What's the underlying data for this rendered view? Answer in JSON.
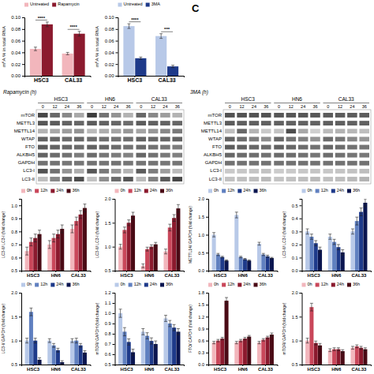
{
  "chart_data": [
    {
      "type": "bar",
      "categories": [
        "HSC3",
        "CAL33"
      ],
      "ylabel": "m⁶A % in total RNA",
      "ylim": [
        0,
        0.1
      ],
      "yticks": [
        {
          "value": 0,
          "label": "0.00"
        },
        0.02,
        0.04,
        0.06,
        0.08,
        {
          "value": 0.1,
          "label": "0.10"
        }
      ],
      "legend": "top",
      "annotations": [
        "****",
        "****"
      ],
      "series": [
        {
          "name": "Untreated",
          "color": "#f2b6bc",
          "values": [
            0.046,
            0.038
          ],
          "errors": [
            0.003,
            0.002
          ]
        },
        {
          "name": "Rapamycin",
          "color": "#8b1a2e",
          "values": [
            0.088,
            0.072
          ],
          "errors": [
            0.004,
            0.004
          ]
        }
      ]
    },
    {
      "type": "bar",
      "categories": [
        "HSC3",
        "CAL33"
      ],
      "ylabel": "m⁶A % in total RNA",
      "ylim": [
        0,
        0.1
      ],
      "yticks": [
        {
          "value": 0,
          "label": "0.00"
        },
        0.02,
        0.04,
        0.06,
        0.08,
        {
          "value": 0.1,
          "label": "0.10"
        }
      ],
      "legend": "top",
      "annotations": [
        "****",
        "***"
      ],
      "series": [
        {
          "name": "Untreated",
          "color": "#b8c9e8",
          "values": [
            0.085,
            0.068
          ],
          "errors": [
            0.004,
            0.004
          ]
        },
        {
          "name": "3MA",
          "color": "#1e3a8a",
          "values": [
            0.03,
            0.016
          ],
          "errors": [
            0.002,
            0.002
          ]
        }
      ]
    },
    {
      "type": "text",
      "annotations": [
        "C"
      ]
    },
    {
      "type": "heatmap",
      "title": "Rapamycin (h)",
      "groups": [
        "HSC3",
        "HN6",
        "CAL33"
      ],
      "timepoints": [
        "0",
        "12",
        "24",
        "36"
      ],
      "categories": [
        "mTOR",
        "METTL3",
        "METTL14",
        "WTAP",
        "FTO",
        "ALKBH5",
        "GAPDH",
        "LC3-I",
        "LC3-II"
      ],
      "cells": [
        [
          0.85,
          0.7,
          0.55,
          0.4,
          0.9,
          0.65,
          0.5,
          0.35,
          0.7,
          0.55,
          0.45,
          0.35
        ],
        [
          0.78,
          0.75,
          0.72,
          0.7,
          0.75,
          0.72,
          0.7,
          0.68,
          0.75,
          0.73,
          0.72,
          0.7
        ],
        [
          0.35,
          0.4,
          0.45,
          0.5,
          0.32,
          0.38,
          0.42,
          0.48,
          0.42,
          0.48,
          0.55,
          0.62
        ],
        [
          0.72,
          0.7,
          0.68,
          0.7,
          0.68,
          0.66,
          0.65,
          0.67,
          0.72,
          0.7,
          0.7,
          0.72
        ],
        [
          0.75,
          0.72,
          0.7,
          0.68,
          0.73,
          0.7,
          0.68,
          0.65,
          0.68,
          0.65,
          0.63,
          0.6
        ],
        [
          0.72,
          0.68,
          0.65,
          0.6,
          0.68,
          0.63,
          0.6,
          0.57,
          0.7,
          0.65,
          0.62,
          0.58
        ],
        [
          0.65,
          0.65,
          0.63,
          0.63,
          0.65,
          0.64,
          0.64,
          0.63,
          0.64,
          0.64,
          0.63,
          0.63
        ],
        [
          0.8,
          0.65,
          0.5,
          0.38,
          0.78,
          0.62,
          0.48,
          0.35,
          0.75,
          0.6,
          0.45,
          0.32
        ],
        [
          0.3,
          0.55,
          0.72,
          0.82,
          0.28,
          0.52,
          0.68,
          0.78,
          0.32,
          0.58,
          0.75,
          0.85
        ]
      ]
    },
    {
      "type": "heatmap",
      "title": "3MA (h)",
      "groups": [
        "HSC3",
        "HN6",
        "CAL33"
      ],
      "timepoints": [
        "0",
        "12",
        "24",
        "36"
      ],
      "categories": [
        "mTOR",
        "METTL3",
        "METTL14",
        "WTAP",
        "FTO",
        "ALKBH5",
        "GAPDH",
        "LC3-I",
        "LC3-II"
      ],
      "cells": [
        [
          0.8,
          0.8,
          0.8,
          0.8,
          0.78,
          0.78,
          0.78,
          0.78,
          0.75,
          0.75,
          0.75,
          0.75
        ],
        [
          0.75,
          0.74,
          0.74,
          0.73,
          0.73,
          0.73,
          0.72,
          0.72,
          0.74,
          0.74,
          0.73,
          0.73
        ],
        [
          0.3,
          0.7,
          0.35,
          0.25,
          0.28,
          0.82,
          0.4,
          0.22,
          0.32,
          0.35,
          0.33,
          0.3
        ],
        [
          0.72,
          0.68,
          0.6,
          0.52,
          0.7,
          0.65,
          0.58,
          0.5,
          0.68,
          0.63,
          0.55,
          0.48
        ],
        [
          0.75,
          0.73,
          0.7,
          0.68,
          0.73,
          0.7,
          0.68,
          0.65,
          0.7,
          0.68,
          0.65,
          0.63
        ],
        [
          0.7,
          0.68,
          0.67,
          0.65,
          0.68,
          0.67,
          0.65,
          0.63,
          0.67,
          0.65,
          0.63,
          0.62
        ],
        [
          0.65,
          0.65,
          0.65,
          0.65,
          0.65,
          0.65,
          0.65,
          0.65,
          0.65,
          0.65,
          0.65,
          0.65
        ],
        [
          0.25,
          0.26,
          0.27,
          0.28,
          0.24,
          0.25,
          0.26,
          0.27,
          0.26,
          0.27,
          0.28,
          0.3
        ],
        [
          0.28,
          0.29,
          0.3,
          0.32,
          0.27,
          0.28,
          0.3,
          0.32,
          0.29,
          0.3,
          0.32,
          0.35
        ]
      ]
    },
    {
      "type": "bar",
      "categories": [
        "HSC3",
        "HN6",
        "CAL33"
      ],
      "ylabel": "LC3-II/ LC3-I (fold change)",
      "ylim": [
        0.5,
        1.05
      ],
      "yticks": [
        0.5,
        0.6,
        0.7,
        0.8,
        0.9,
        {
          "value": 1,
          "label": "1.0"
        }
      ],
      "legend": "top",
      "series": [
        {
          "name": "0h",
          "color": "#f2b6bc",
          "values": [
            0.65,
            0.7,
            0.82
          ],
          "errors": [
            0.03,
            0.03,
            0.03
          ]
        },
        {
          "name": "12h",
          "color": "#c9475a",
          "values": [
            0.72,
            0.75,
            0.88
          ],
          "errors": [
            0.03,
            0.03,
            0.03
          ]
        },
        {
          "name": "24h",
          "color": "#8b1a2e",
          "values": [
            0.75,
            0.78,
            0.93
          ],
          "errors": [
            0.03,
            0.03,
            0.03
          ]
        },
        {
          "name": "36h",
          "color": "#4a0a15",
          "values": [
            0.78,
            0.82,
            0.98
          ],
          "errors": [
            0.03,
            0.03,
            0.03
          ]
        }
      ]
    },
    {
      "type": "bar",
      "categories": [
        "HSC3",
        "HN6",
        "CAL33"
      ],
      "ylabel": "LC3-II/ LC3-I (fold change)",
      "ylim": [
        0.5,
        2.0
      ],
      "yticks": [
        0.5,
        {
          "value": 1,
          "label": "1.0"
        },
        1.5,
        {
          "value": 2,
          "label": "2.0"
        }
      ],
      "legend": "top",
      "series": [
        {
          "name": "0h",
          "color": "#f2b6bc",
          "values": [
            1.0,
            0.6,
            0.9
          ],
          "errors": [
            0.05,
            0.04,
            0.05
          ]
        },
        {
          "name": "12h",
          "color": "#c9475a",
          "values": [
            1.35,
            0.95,
            1.4
          ],
          "errors": [
            0.06,
            0.04,
            0.07
          ]
        },
        {
          "name": "24h",
          "color": "#8b1a2e",
          "values": [
            1.5,
            1.0,
            1.6
          ],
          "errors": [
            0.06,
            0.04,
            0.07
          ]
        },
        {
          "name": "36h",
          "color": "#4a0a15",
          "values": [
            1.65,
            1.05,
            1.8
          ],
          "errors": [
            0.07,
            0.04,
            0.08
          ]
        }
      ]
    },
    {
      "type": "bar",
      "categories": [
        "HSC3",
        "HN6",
        "CAL33"
      ],
      "ylabel": "METTL14/ GAPDH (fold change)",
      "ylim": [
        0.0,
        2.0
      ],
      "yticks": [
        {
          "value": 0,
          "label": "0.0"
        },
        0.5,
        {
          "value": 1,
          "label": "1.0"
        },
        1.5,
        {
          "value": 2,
          "label": "2.0"
        }
      ],
      "legend": "top",
      "series": [
        {
          "name": "0h",
          "color": "#b8c9e8",
          "values": [
            1.0,
            1.55,
            0.75
          ],
          "errors": [
            0.06,
            0.08,
            0.04
          ]
        },
        {
          "name": "12h",
          "color": "#6080c0",
          "values": [
            0.45,
            0.38,
            0.45
          ],
          "errors": [
            0.03,
            0.02,
            0.03
          ]
        },
        {
          "name": "24h",
          "color": "#1e3a8a",
          "values": [
            0.38,
            0.32,
            0.4
          ],
          "errors": [
            0.02,
            0.02,
            0.03
          ]
        },
        {
          "name": "36h",
          "color": "#0a1550",
          "values": [
            0.28,
            0.28,
            0.35
          ],
          "errors": [
            0.02,
            0.02,
            0.02
          ]
        }
      ]
    },
    {
      "type": "bar",
      "categories": [
        "HSC3",
        "HN6",
        "CAL33"
      ],
      "ylabel": "LC3-II/ LC3-I (fold change)",
      "ylim": [
        0.0,
        0.55
      ],
      "yticks": [
        {
          "value": 0,
          "label": "0.0"
        },
        0.1,
        0.2,
        0.3,
        0.4,
        0.5
      ],
      "legend": "top",
      "series": [
        {
          "name": "0h",
          "color": "#b8c9e8",
          "values": [
            0.3,
            0.26,
            0.3
          ],
          "errors": [
            0.02,
            0.02,
            0.02
          ]
        },
        {
          "name": "12h",
          "color": "#6080c0",
          "values": [
            0.26,
            0.22,
            0.38
          ],
          "errors": [
            0.02,
            0.02,
            0.03
          ]
        },
        {
          "name": "24h",
          "color": "#1e3a8a",
          "values": [
            0.21,
            0.18,
            0.45
          ],
          "errors": [
            0.02,
            0.02,
            0.03
          ]
        },
        {
          "name": "36h",
          "color": "#0a1550",
          "values": [
            0.16,
            0.14,
            0.52
          ],
          "errors": [
            0.02,
            0.02,
            0.03
          ]
        }
      ]
    },
    {
      "type": "bar",
      "categories": [
        "HSC3",
        "HN6",
        "CAL33"
      ],
      "ylabel": "LC3-I/ GAPDH (fold change)",
      "ylim": [
        0.5,
        2.0
      ],
      "yticks": [
        0.5,
        {
          "value": 1,
          "label": "1.0"
        },
        1.5,
        {
          "value": 2,
          "label": "2.0"
        }
      ],
      "legend": "top",
      "series": [
        {
          "name": "0h",
          "color": "#b8c9e8",
          "values": [
            1.0,
            1.0,
            1.0
          ],
          "errors": [
            0.05,
            0.04,
            0.04
          ]
        },
        {
          "name": "12h",
          "color": "#6080c0",
          "values": [
            1.6,
            0.9,
            1.0
          ],
          "errors": [
            0.08,
            0.04,
            0.05
          ]
        },
        {
          "name": "24h",
          "color": "#1e3a8a",
          "values": [
            1.0,
            0.8,
            0.9
          ],
          "errors": [
            0.05,
            0.04,
            0.04
          ]
        },
        {
          "name": "36h",
          "color": "#0a1550",
          "values": [
            0.6,
            0.55,
            0.75
          ],
          "errors": [
            0.04,
            0.03,
            0.04
          ]
        }
      ]
    },
    {
      "type": "bar",
      "categories": [
        "HSC3",
        "HN6",
        "CAL33"
      ],
      "ylabel": "mTOR/ GAPDH (fold change)",
      "ylim": [
        0.5,
        1.2
      ],
      "yticks": [
        0.5,
        0.6,
        0.7,
        0.8,
        0.9,
        {
          "value": 1,
          "label": "1.0"
        },
        1.1,
        1.2
      ],
      "legend": "top",
      "series": [
        {
          "name": "0h",
          "color": "#b8c9e8",
          "values": [
            1.0,
            0.82,
            0.95
          ],
          "errors": [
            0.04,
            0.03,
            0.03
          ]
        },
        {
          "name": "12h",
          "color": "#6080c0",
          "values": [
            0.82,
            0.78,
            0.9
          ],
          "errors": [
            0.04,
            0.03,
            0.03
          ]
        },
        {
          "name": "24h",
          "color": "#1e3a8a",
          "values": [
            0.72,
            0.73,
            0.86
          ],
          "errors": [
            0.03,
            0.03,
            0.03
          ]
        },
        {
          "name": "36h",
          "color": "#0a1550",
          "values": [
            0.62,
            0.7,
            0.82
          ],
          "errors": [
            0.03,
            0.03,
            0.03
          ]
        }
      ]
    },
    {
      "type": "bar",
      "categories": [
        "HSC3",
        "HN6",
        "CAL33"
      ],
      "ylabel": "FTO/ CAPDH (fold change)",
      "ylim": [
        0.0,
        1.8
      ],
      "yticks": [
        {
          "value": 0,
          "label": "0.0"
        },
        0.3,
        0.6,
        0.9,
        1.2,
        1.5,
        1.8
      ],
      "legend": "top",
      "series": [
        {
          "name": "0h",
          "color": "#f2b6bc",
          "values": [
            0.55,
            0.55,
            0.55
          ],
          "errors": [
            0.03,
            0.03,
            0.03
          ]
        },
        {
          "name": "12h",
          "color": "#c9475a",
          "values": [
            0.6,
            0.6,
            0.62
          ],
          "errors": [
            0.03,
            0.03,
            0.03
          ]
        },
        {
          "name": "24h",
          "color": "#8b1a2e",
          "values": [
            0.65,
            0.65,
            0.68
          ],
          "errors": [
            0.03,
            0.03,
            0.03
          ]
        },
        {
          "name": "36h",
          "color": "#4a0a15",
          "values": [
            1.6,
            0.7,
            0.75
          ],
          "errors": [
            0.08,
            0.03,
            0.04
          ]
        }
      ]
    },
    {
      "type": "bar",
      "categories": [
        "HSC3",
        "HN6",
        "CAL33"
      ],
      "ylabel": "mTOR/ GAPDH (fold change)",
      "ylim": [
        0.5,
        2.0
      ],
      "yticks": [
        0.5,
        {
          "value": 1,
          "label": "1.0"
        },
        1.5,
        {
          "value": 2,
          "label": "2.0"
        }
      ],
      "legend": "top",
      "series": [
        {
          "name": "0h",
          "color": "#f2b6bc",
          "values": [
            1.0,
            0.8,
            0.85
          ],
          "errors": [
            0.05,
            0.03,
            0.03
          ]
        },
        {
          "name": "12h",
          "color": "#c9475a",
          "values": [
            1.7,
            0.82,
            0.88
          ],
          "errors": [
            0.08,
            0.03,
            0.03
          ]
        },
        {
          "name": "24h",
          "color": "#8b1a2e",
          "values": [
            0.95,
            0.82,
            0.85
          ],
          "errors": [
            0.04,
            0.03,
            0.03
          ]
        },
        {
          "name": "36h",
          "color": "#4a0a15",
          "values": [
            0.9,
            0.78,
            0.82
          ],
          "errors": [
            0.04,
            0.03,
            0.03
          ]
        }
      ]
    }
  ]
}
